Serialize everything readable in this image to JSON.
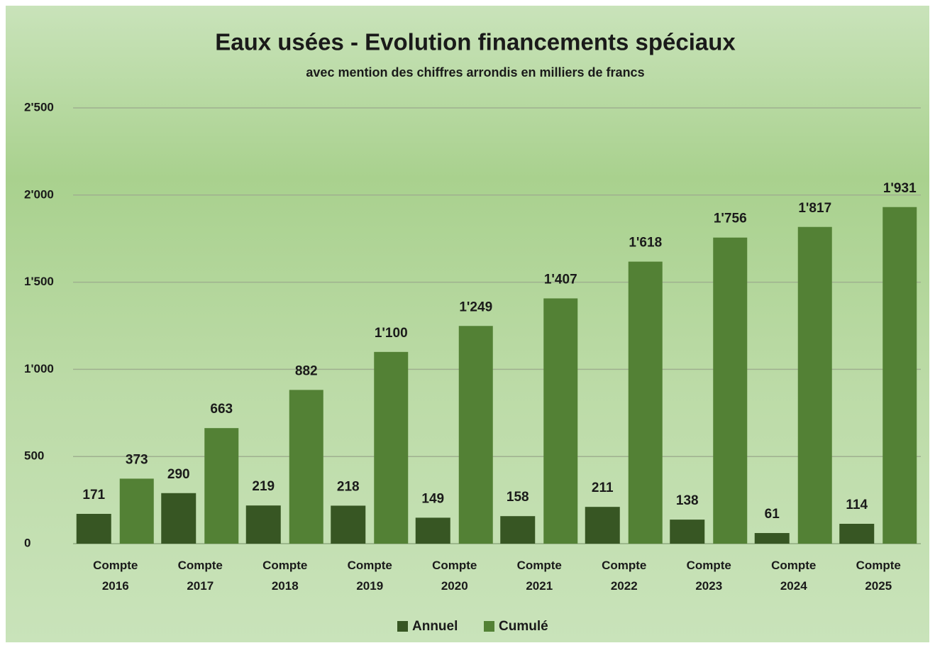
{
  "chart_data": {
    "type": "bar",
    "title": "Eaux usées - Evolution financements spéciaux",
    "subtitle": "avec mention des chiffres arrondis en milliers de francs",
    "categories": [
      "Compte 2016",
      "Compte 2017",
      "Compte 2018",
      "Compte 2019",
      "Compte 2020",
      "Compte 2021",
      "Compte 2022",
      "Compte 2023",
      "Compte 2024",
      "Compte 2025"
    ],
    "series": [
      {
        "name": "Annuel",
        "color": "#375623",
        "values": [
          171,
          290,
          219,
          218,
          149,
          158,
          211,
          138,
          61,
          114
        ]
      },
      {
        "name": "Cumulé",
        "color": "#538135",
        "values": [
          373,
          663,
          882,
          1100,
          1249,
          1407,
          1618,
          1756,
          1817,
          1931
        ],
        "value_labels": [
          "373",
          "663",
          "882",
          "1'100",
          "1'249",
          "1'407",
          "1'618",
          "1'756",
          "1'817",
          "1'931"
        ]
      }
    ],
    "ylim": [
      0,
      2500
    ],
    "yticks": [
      0,
      500,
      {
        "value": 1000,
        "label": "1'000"
      },
      {
        "value": 1500,
        "label": "1'500"
      },
      {
        "value": 2000,
        "label": "2'000"
      },
      {
        "value": 2500,
        "label": "2'500"
      }
    ],
    "grid": true,
    "legend": "bottom"
  }
}
